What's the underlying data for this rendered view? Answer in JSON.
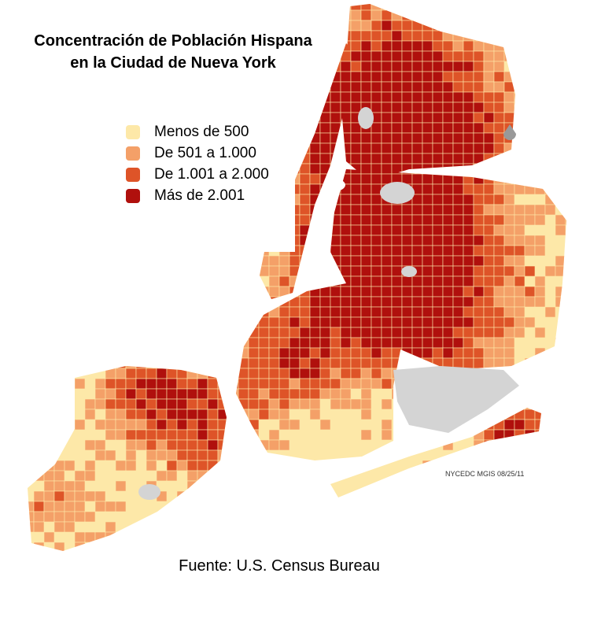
{
  "title_lines": [
    "Concentración de Población Hispana",
    "en la Ciudad de Nueva York"
  ],
  "legend": {
    "items": [
      {
        "label": "Menos de 500",
        "color": "#fde8a8"
      },
      {
        "label": "De 501 a 1.000",
        "color": "#f4a068"
      },
      {
        "label": "De 1.001 a 2.000",
        "color": "#de5428"
      },
      {
        "label": "Más de 2.001",
        "color": "#b0100d"
      }
    ]
  },
  "credit": "NYCEDC MGIS 08/25/11",
  "source": "Fuente: U.S. Census Bureau"
}
